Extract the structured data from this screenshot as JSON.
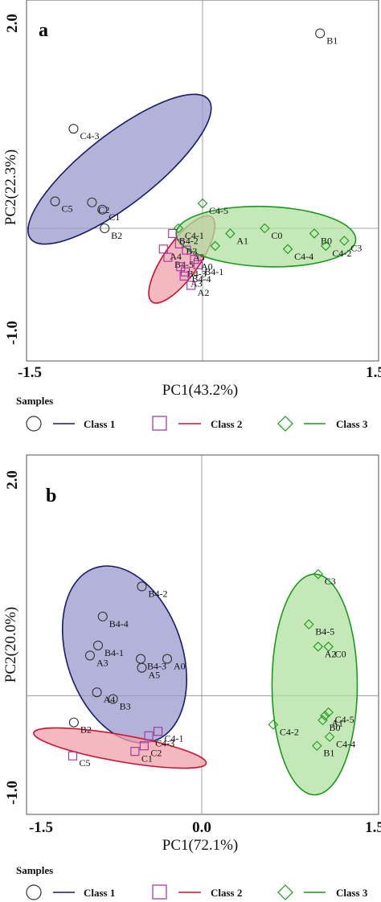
{
  "chart_data": [
    {
      "type": "scatter",
      "panel": "a",
      "xlabel": "PC1(43.2%)",
      "ylabel": "PC2(22.3%)",
      "xlim": [
        -1.5,
        1.5
      ],
      "ylim": [
        -1.0,
        2.0
      ],
      "x_ticks": [
        "-1.5",
        "1.5"
      ],
      "y_ticks": [
        "2.0",
        "-1.0"
      ],
      "reference_lines": {
        "x": 0,
        "y": 0
      },
      "series": [
        {
          "name": "Class 1",
          "marker": "circle",
          "color": "#1a1a6e",
          "ellipse_fill": "#9a99cc",
          "ellipse_stroke": "#1a1a6e",
          "points": [
            {
              "label": "B1",
              "x": 1.02,
              "y": 1.88
            },
            {
              "label": "C4-3",
              "x": -1.12,
              "y": 0.96
            },
            {
              "label": "C5",
              "x": -1.28,
              "y": 0.26
            },
            {
              "label": "C2",
              "x": -0.96,
              "y": 0.25
            },
            {
              "label": "C1",
              "x": -0.87,
              "y": 0.18
            },
            {
              "label": "B2",
              "x": -0.85,
              "y": 0.0
            }
          ],
          "ellipse": {
            "cx": -0.72,
            "cy": 0.57,
            "rx": 0.98,
            "ry": 0.34,
            "angle_deg": 38
          }
        },
        {
          "name": "Class 2",
          "marker": "square",
          "color": "#a030a0",
          "ellipse_fill": "#f0a0aa",
          "ellipse_stroke": "#d01030",
          "points": [
            {
              "label": "B4-2",
              "x": -0.26,
              "y": -0.05
            },
            {
              "label": "B3",
              "x": -0.2,
              "y": -0.15
            },
            {
              "label": "A4",
              "x": -0.34,
              "y": -0.2
            },
            {
              "label": "A5",
              "x": -0.14,
              "y": -0.21
            },
            {
              "label": "B4-5",
              "x": -0.3,
              "y": -0.28
            },
            {
              "label": "B4-3",
              "x": -0.19,
              "y": -0.37
            },
            {
              "label": "B4-4",
              "x": -0.15,
              "y": -0.42
            },
            {
              "label": "A3",
              "x": -0.16,
              "y": -0.46
            },
            {
              "label": "A2",
              "x": -0.1,
              "y": -0.55
            },
            {
              "label": "B4-1",
              "x": -0.04,
              "y": -0.35
            },
            {
              "label": "A0",
              "x": -0.07,
              "y": -0.3
            }
          ],
          "ellipse": {
            "cx": -0.18,
            "cy": -0.3,
            "rx": 0.45,
            "ry": 0.17,
            "angle_deg": 55
          }
        },
        {
          "name": "Class 3",
          "marker": "diamond",
          "color": "#1a9a1a",
          "ellipse_fill": "#b0e0a0",
          "ellipse_stroke": "#1a9a1a",
          "points": [
            {
              "label": "C4-5",
              "x": 0.0,
              "y": 0.24
            },
            {
              "label": "C4-1",
              "x": -0.21,
              "y": 0.0
            },
            {
              "label": "A1",
              "x": 0.24,
              "y": -0.05
            },
            {
              "label": "C0",
              "x": 0.54,
              "y": 0.0
            },
            {
              "label": "B0",
              "x": 0.97,
              "y": -0.05
            },
            {
              "label": "C4-4",
              "x": 0.74,
              "y": -0.2
            },
            {
              "label": "C4-2",
              "x": 1.07,
              "y": -0.17
            },
            {
              "label": "C3",
              "x": 1.23,
              "y": -0.12
            },
            {
              "label": "",
              "x": 0.11,
              "y": -0.17
            }
          ],
          "ellipse": {
            "cx": 0.55,
            "cy": -0.08,
            "rx": 0.78,
            "ry": 0.29,
            "angle_deg": -2
          }
        }
      ]
    },
    {
      "type": "scatter",
      "panel": "b",
      "xlabel": "PC1(72.1%)",
      "ylabel": "PC2(20.0%)",
      "xlim": [
        -1.5,
        1.5
      ],
      "ylim": [
        -1.0,
        2.0
      ],
      "x_ticks": [
        "-1.5",
        "0.0",
        "1.5"
      ],
      "y_ticks": [
        "2.0",
        "-1.0"
      ],
      "reference_lines": {
        "x": 0,
        "y": 0
      },
      "series": [
        {
          "name": "Class 1",
          "marker": "circle",
          "color": "#1a1a6e",
          "ellipse_fill": "#9a99cc",
          "ellipse_stroke": "#1a1a6e",
          "points": [
            {
              "label": "B4-2",
              "x": -0.52,
              "y": 0.98
            },
            {
              "label": "B4-4",
              "x": -0.86,
              "y": 0.71
            },
            {
              "label": "B4-1",
              "x": -0.9,
              "y": 0.45
            },
            {
              "label": "A3",
              "x": -0.97,
              "y": 0.36
            },
            {
              "label": "B4-3",
              "x": -0.53,
              "y": 0.33
            },
            {
              "label": "A0",
              "x": -0.3,
              "y": 0.33
            },
            {
              "label": "A5",
              "x": -0.52,
              "y": 0.25
            },
            {
              "label": "A4",
              "x": -0.91,
              "y": 0.03
            },
            {
              "label": "B3",
              "x": -0.77,
              "y": -0.03
            },
            {
              "label": "B2",
              "x": -1.11,
              "y": -0.24
            }
          ],
          "ellipse": {
            "cx": -0.67,
            "cy": 0.37,
            "rx": 0.5,
            "ry": 0.82,
            "angle_deg": 19
          }
        },
        {
          "name": "Class 2",
          "marker": "square",
          "color": "#a030a0",
          "ellipse_fill": "#f0a0aa",
          "ellipse_stroke": "#d01030",
          "points": [
            {
              "label": "C4-1",
              "x": -0.38,
              "y": -0.32
            },
            {
              "label": "C4-3",
              "x": -0.46,
              "y": -0.36
            },
            {
              "label": "C2",
              "x": -0.5,
              "y": -0.45
            },
            {
              "label": "C1",
              "x": -0.58,
              "y": -0.5
            },
            {
              "label": "C5",
              "x": -1.12,
              "y": -0.54
            }
          ],
          "ellipse": {
            "cx": -0.71,
            "cy": -0.47,
            "rx": 0.76,
            "ry": 0.12,
            "angle_deg": -10
          }
        },
        {
          "name": "Class 3",
          "marker": "diamond",
          "color": "#1a9a1a",
          "ellipse_fill": "#b0e0a0",
          "ellipse_stroke": "#1a9a1a",
          "points": [
            {
              "label": "C3",
              "x": 1.01,
              "y": 1.09
            },
            {
              "label": "B4-5",
              "x": 0.93,
              "y": 0.64
            },
            {
              "label": "A2",
              "x": 1.01,
              "y": 0.44
            },
            {
              "label": "C0",
              "x": 1.1,
              "y": 0.44
            },
            {
              "label": "C4-5",
              "x": 1.1,
              "y": -0.15
            },
            {
              "label": "A1",
              "x": 1.07,
              "y": -0.18
            },
            {
              "label": "B0",
              "x": 1.05,
              "y": -0.22
            },
            {
              "label": "C4-2",
              "x": 0.62,
              "y": -0.26
            },
            {
              "label": "C4-4",
              "x": 1.11,
              "y": -0.37
            },
            {
              "label": "B1",
              "x": 1.0,
              "y": -0.45
            }
          ],
          "ellipse": {
            "cx": 0.98,
            "cy": 0.1,
            "rx": 0.37,
            "ry": 0.99,
            "angle_deg": 0
          }
        }
      ]
    }
  ],
  "legend": {
    "title": "Samples",
    "items": [
      {
        "label": "Class 1",
        "marker": "circle",
        "marker_color": "#333333",
        "line_color": "#1a1a6e"
      },
      {
        "label": "Class 2",
        "marker": "square",
        "marker_color": "#a030a0",
        "line_color": "#d01030"
      },
      {
        "label": "Class 3",
        "marker": "diamond",
        "marker_color": "#1a9a1a",
        "line_color": "#1a9a1a"
      }
    ]
  }
}
